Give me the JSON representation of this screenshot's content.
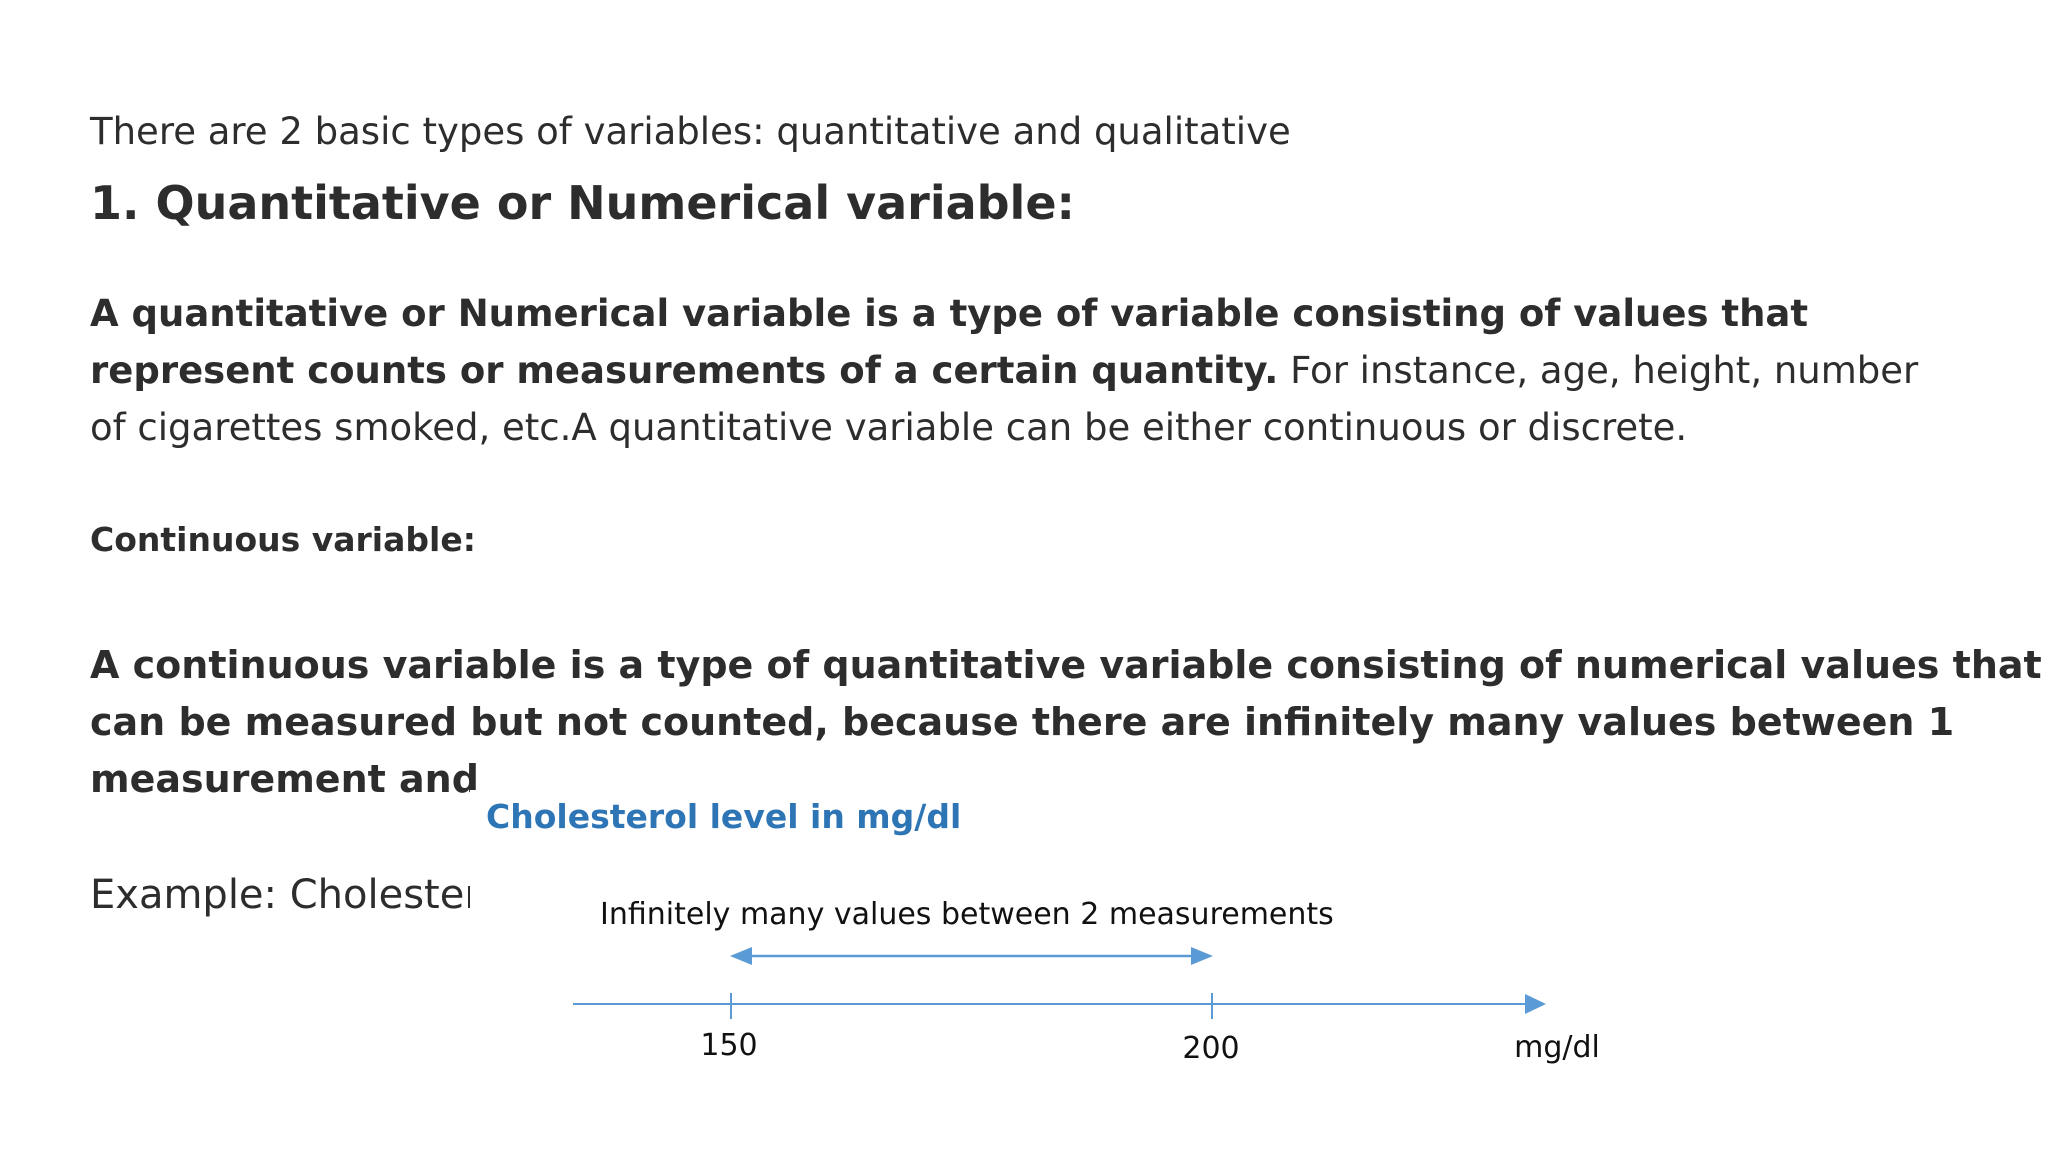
{
  "intro": "There are 2 basic types of variables: quantitative and qualitative",
  "heading": "1. Quantitative or Numerical variable:",
  "paragraph": {
    "lines": [
      [
        {
          "text": "A quantitative or Numerical variable is a type of variable consisting of values that",
          "bold": true
        }
      ],
      [
        {
          "text": "represent counts or measurements of a certain quantity.",
          "bold": true
        },
        {
          "text": " For instance, age, height, number",
          "bold": false
        }
      ],
      [
        {
          "text": "of cigarettes smoked, etc.A quantitative variable can be either continuous or discrete.",
          "bold": false
        }
      ]
    ]
  },
  "subheading": "Continuous variable:",
  "definition": {
    "lines": [
      "A continuous variable is a type of quantitative variable consisting of numerical values that",
      "can be measured but not counted, because there are infinitely many values between 1",
      "measurement and"
    ]
  },
  "example": "Example: Cholester",
  "diagram": {
    "title": "Cholesterol level in mg/dl",
    "annotation": "Infinitely many values between 2 measurements",
    "ticks": [
      "150",
      "200"
    ],
    "unit": "mg/dl"
  }
}
